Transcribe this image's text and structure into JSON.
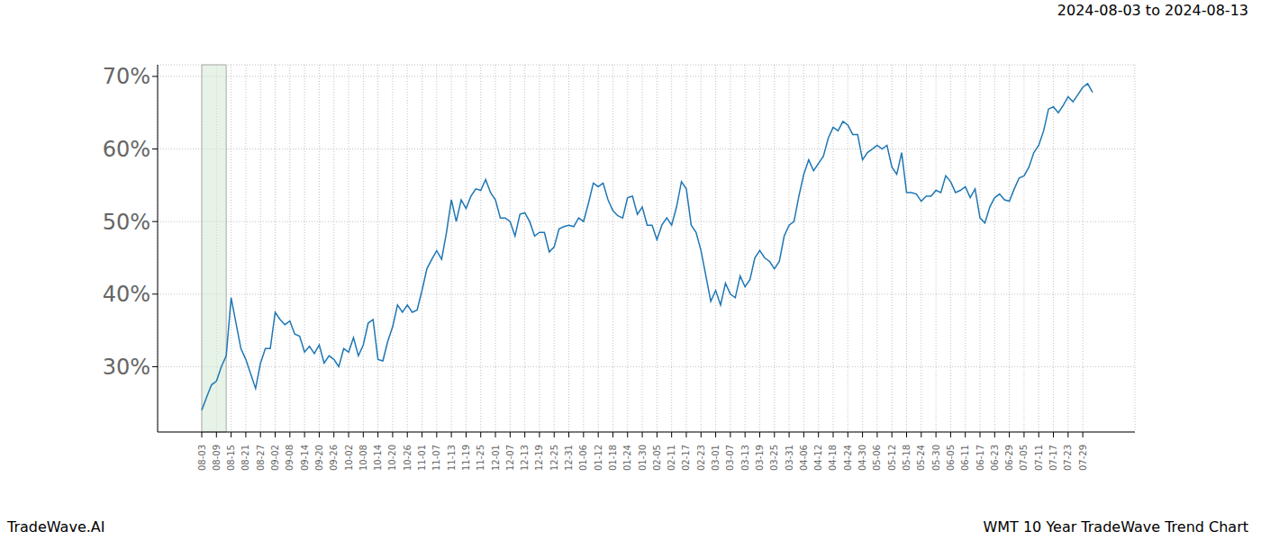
{
  "chart_data": {
    "type": "line",
    "title": "2024-08-03 to 2024-08-13",
    "annotations": [
      "TradeWave.AI",
      "WMT 10 Year TradeWave Trend Chart"
    ],
    "shaded_range": {
      "start": "2024-08-03",
      "end": "2024-08-13"
    },
    "color": "#1f77b4",
    "grid": true,
    "ylim": [
      21,
      71.6
    ],
    "yticks": [
      {
        "value": 30,
        "label": "30%"
      },
      {
        "value": 40,
        "label": "40%"
      },
      {
        "value": 50,
        "label": "50%"
      },
      {
        "value": 60,
        "label": "60%"
      },
      {
        "value": 70,
        "label": "70%"
      }
    ],
    "categories": [
      "08-03",
      null,
      null,
      "08-09",
      null,
      null,
      "08-15",
      null,
      null,
      "08-21",
      null,
      null,
      "08-27",
      null,
      null,
      "09-02",
      null,
      null,
      "09-08",
      null,
      null,
      "09-14",
      null,
      null,
      "09-20",
      null,
      null,
      "09-26",
      null,
      null,
      "10-02",
      null,
      null,
      "10-08",
      null,
      null,
      "10-14",
      null,
      null,
      "10-20",
      null,
      null,
      "10-26",
      null,
      null,
      "11-01",
      null,
      null,
      "11-07",
      null,
      null,
      "11-13",
      null,
      null,
      "11-19",
      null,
      null,
      "11-25",
      null,
      null,
      "12-01",
      null,
      null,
      "12-07",
      null,
      null,
      "12-13",
      null,
      null,
      "12-19",
      null,
      null,
      "12-25",
      null,
      null,
      "12-31",
      null,
      null,
      "01-06",
      null,
      null,
      "01-12",
      null,
      null,
      "01-18",
      null,
      null,
      "01-24",
      null,
      null,
      "01-30",
      null,
      null,
      "02-05",
      null,
      null,
      "02-11",
      null,
      null,
      "02-17",
      null,
      null,
      "02-23",
      null,
      null,
      "03-01",
      null,
      null,
      "03-07",
      null,
      null,
      "03-13",
      null,
      null,
      "03-19",
      null,
      null,
      "03-25",
      null,
      null,
      "03-31",
      null,
      null,
      "04-06",
      null,
      null,
      "04-12",
      null,
      null,
      "04-18",
      null,
      null,
      "04-24",
      null,
      null,
      "04-30",
      null,
      null,
      "05-06",
      null,
      null,
      "05-12",
      null,
      null,
      "05-18",
      null,
      null,
      "05-24",
      null,
      null,
      "05-30",
      null,
      null,
      "06-05",
      null,
      null,
      "06-11",
      null,
      null,
      "06-17",
      null,
      null,
      "06-23",
      null,
      null,
      "06-29",
      null,
      null,
      "07-05",
      null,
      null,
      "07-11",
      null,
      null,
      "07-17",
      null,
      null,
      "07-23",
      null,
      null,
      "07-29",
      null,
      null
    ],
    "values": [
      24,
      25.8,
      27.5,
      28,
      30,
      31.5,
      39.5,
      36,
      32.5,
      31,
      29,
      27,
      30.5,
      32.5,
      32.5,
      37.5,
      36.5,
      35.8,
      36.3,
      34.5,
      34.2,
      32,
      32.8,
      31.8,
      33,
      30.5,
      31.5,
      31,
      30,
      32.5,
      32,
      34,
      31.5,
      33,
      36,
      36.5,
      31,
      30.8,
      33.5,
      35.5,
      38.5,
      37.5,
      38.5,
      37.5,
      37.8,
      40.5,
      43.5,
      44.8,
      46,
      44.8,
      48.5,
      53,
      50,
      53,
      51.8,
      53.5,
      54.5,
      54.3,
      55.8,
      54,
      53,
      50.5,
      50.5,
      50,
      48,
      51,
      51.2,
      50,
      48,
      48.5,
      48.5,
      45.8,
      46.5,
      49,
      49.3,
      49.5,
      49.3,
      50.5,
      50,
      52.5,
      55.3,
      54.8,
      55.3,
      53,
      51.5,
      50.8,
      50.5,
      53.3,
      53.5,
      51,
      52,
      49.5,
      49.5,
      47.5,
      49.5,
      50.5,
      49.5,
      52,
      55.5,
      54.5,
      49.5,
      48.5,
      46,
      42.5,
      39,
      40.5,
      38.5,
      41.5,
      40,
      39.5,
      42.5,
      41,
      42,
      45,
      46,
      45,
      44.5,
      43.5,
      44.5,
      48,
      49.5,
      50,
      53.5,
      56.5,
      58.5,
      57,
      58,
      59,
      61.5,
      63,
      62.5,
      63.8,
      63.3,
      62,
      62,
      58.5,
      59.5,
      60,
      60.5,
      60,
      60.5,
      57.5,
      56.5,
      59.5,
      54,
      54,
      53.8,
      52.8,
      53.5,
      53.5,
      54.3,
      54,
      56.3,
      55.5,
      54,
      54.3,
      54.8,
      53.3,
      54.5,
      50.5,
      49.8,
      52,
      53.3,
      53.8,
      53,
      52.8,
      54.5,
      56,
      56.3,
      57.5,
      59.5,
      60.5,
      62.5,
      65.5,
      65.8,
      65,
      66,
      67.2,
      66.5,
      67.5,
      68.5,
      69,
      67.8
    ]
  }
}
